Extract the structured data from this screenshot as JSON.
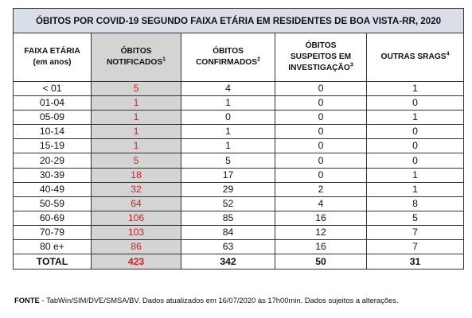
{
  "title": "ÓBITOS POR COVID-19 SEGUNDO FAIXA ETÁRIA EM RESIDENTES DE BOA VISTA-RR, 2020",
  "headers": [
    {
      "line1": "FAIXA ETÁRIA",
      "line2": "(em anos)",
      "sup": ""
    },
    {
      "line1": "ÓBITOS",
      "line2": "NOTIFICADOS",
      "sup": "1"
    },
    {
      "line1": "ÓBITOS",
      "line2": "CONFIRMADOS",
      "sup": "2"
    },
    {
      "line1": "ÓBITOS",
      "line2": "SUSPEITOS EM",
      "line3": "INVESTIGAÇÃO",
      "sup": "3"
    },
    {
      "line1": "OUTRAS SRAGS",
      "line2": "",
      "sup": "4"
    }
  ],
  "rows": [
    [
      "< 01",
      "5",
      "4",
      "0",
      "1"
    ],
    [
      "01-04",
      "1",
      "1",
      "0",
      "0"
    ],
    [
      "05-09",
      "1",
      "0",
      "0",
      "1"
    ],
    [
      "10-14",
      "1",
      "1",
      "0",
      "0"
    ],
    [
      "15-19",
      "1",
      "1",
      "0",
      "0"
    ],
    [
      "20-29",
      "5",
      "5",
      "0",
      "0"
    ],
    [
      "30-39",
      "18",
      "17",
      "0",
      "1"
    ],
    [
      "40-49",
      "32",
      "29",
      "2",
      "1"
    ],
    [
      "50-59",
      "64",
      "52",
      "4",
      "8"
    ],
    [
      "60-69",
      "106",
      "85",
      "16",
      "5"
    ],
    [
      "70-79",
      "103",
      "84",
      "12",
      "7"
    ],
    [
      "80 e+",
      "86",
      "63",
      "16",
      "7"
    ]
  ],
  "total": [
    "TOTAL",
    "423",
    "342",
    "50",
    "31"
  ],
  "source_label": "FONTE",
  "source_text": " - TabWin/SIM/DVE/SMSA/BV.  Dados atualizados em 16/07/2020 às 17h00min. Dados sujeitos a alterações.",
  "colors": {
    "title_bg": "#d9dee8",
    "notified_bg": "#d4d4d4",
    "notified_text": "#d32020"
  }
}
